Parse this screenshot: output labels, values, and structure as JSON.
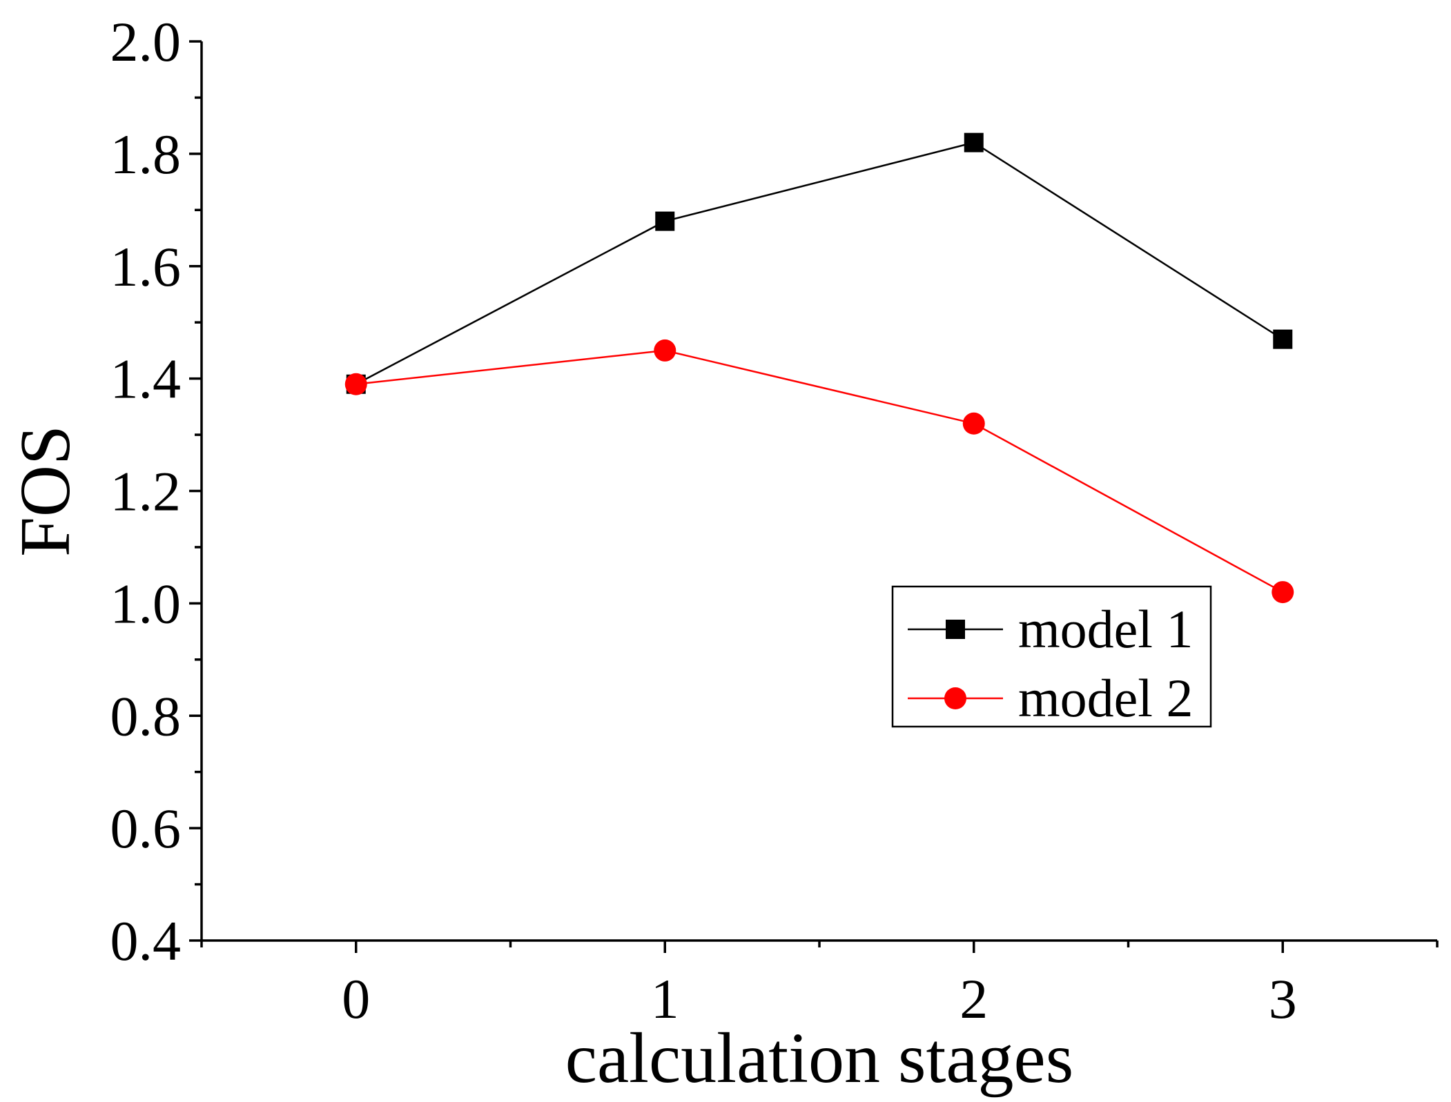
{
  "chart_data": {
    "type": "line",
    "title": "",
    "xlabel": "calculation stages",
    "ylabel": "FOS",
    "x": [
      0,
      1,
      2,
      3
    ],
    "x_tick_labels": [
      "0",
      "1",
      "2",
      "3"
    ],
    "y_tick_labels": [
      "0.4",
      "0.6",
      "0.8",
      "1.0",
      "1.2",
      "1.4",
      "1.6",
      "1.8",
      "2.0"
    ],
    "xlim": [
      -0.5,
      3.5
    ],
    "ylim": [
      0.4,
      2.0
    ],
    "grid": false,
    "legend_position": "right",
    "series": [
      {
        "name": "model 1",
        "color": "#000000",
        "marker": "square",
        "values": [
          1.39,
          1.68,
          1.82,
          1.47
        ]
      },
      {
        "name": "model 2",
        "color": "#ff0000",
        "marker": "circle",
        "values": [
          1.39,
          1.45,
          1.32,
          1.02
        ]
      }
    ]
  }
}
